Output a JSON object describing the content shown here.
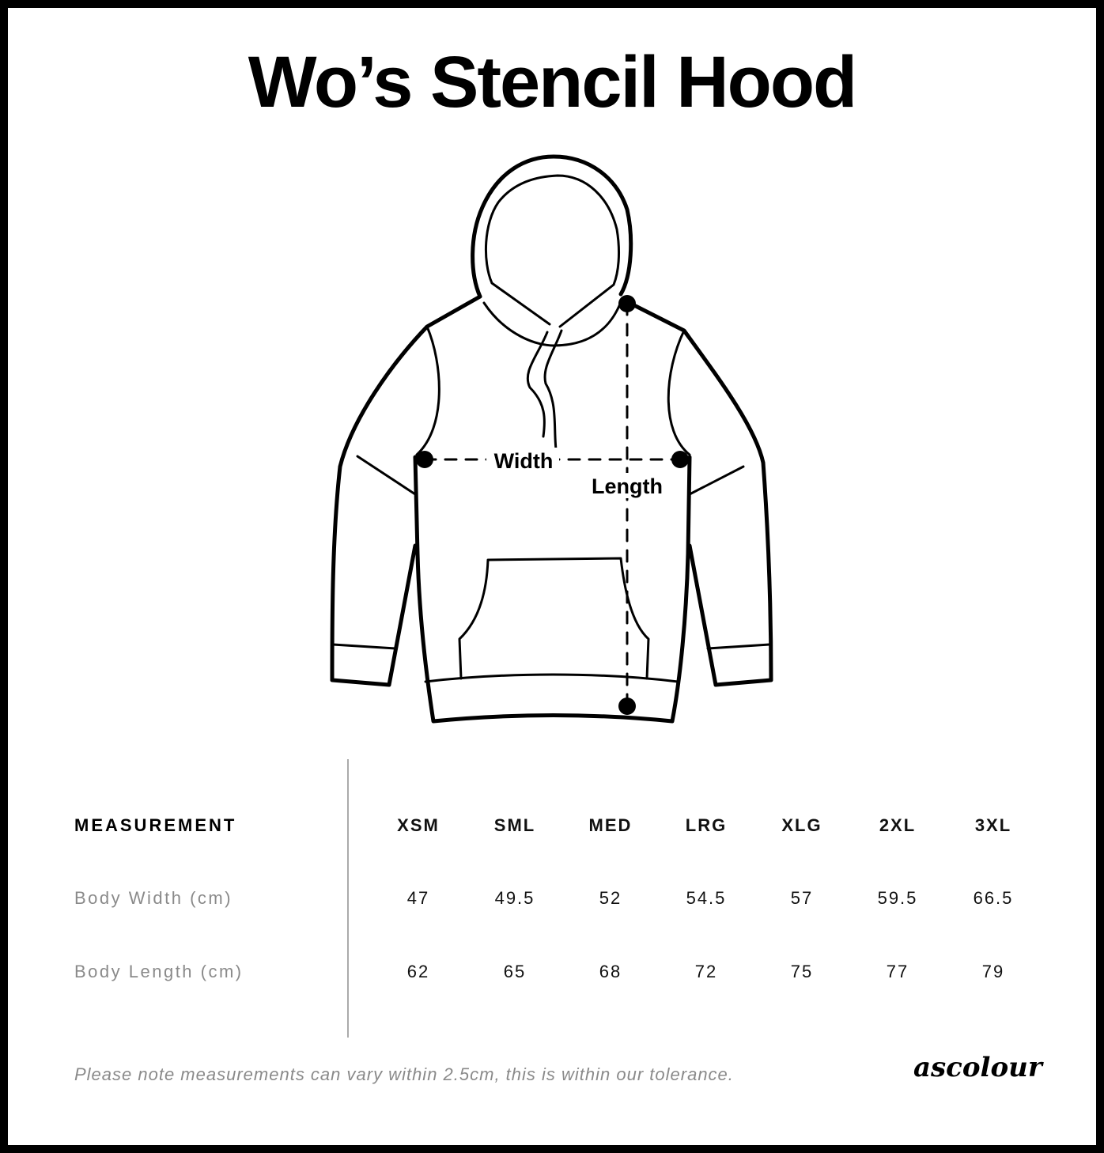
{
  "title": "Wo’s Stencil Hood",
  "diagram": {
    "width_label": "Width",
    "length_label": "Length"
  },
  "table": {
    "header": "MEASUREMENT",
    "sizes": [
      "XSM",
      "SML",
      "MED",
      "LRG",
      "XLG",
      "2XL",
      "3XL"
    ],
    "rows": [
      {
        "label": "Body Width (cm)",
        "values": [
          "47",
          "49.5",
          "52",
          "54.5",
          "57",
          "59.5",
          "66.5"
        ]
      },
      {
        "label": "Body Length (cm)",
        "values": [
          "62",
          "65",
          "68",
          "72",
          "75",
          "77",
          "79"
        ]
      }
    ]
  },
  "note": "Please note measurements can vary within 2.5cm, this is within our tolerance.",
  "logo": "ascolour"
}
